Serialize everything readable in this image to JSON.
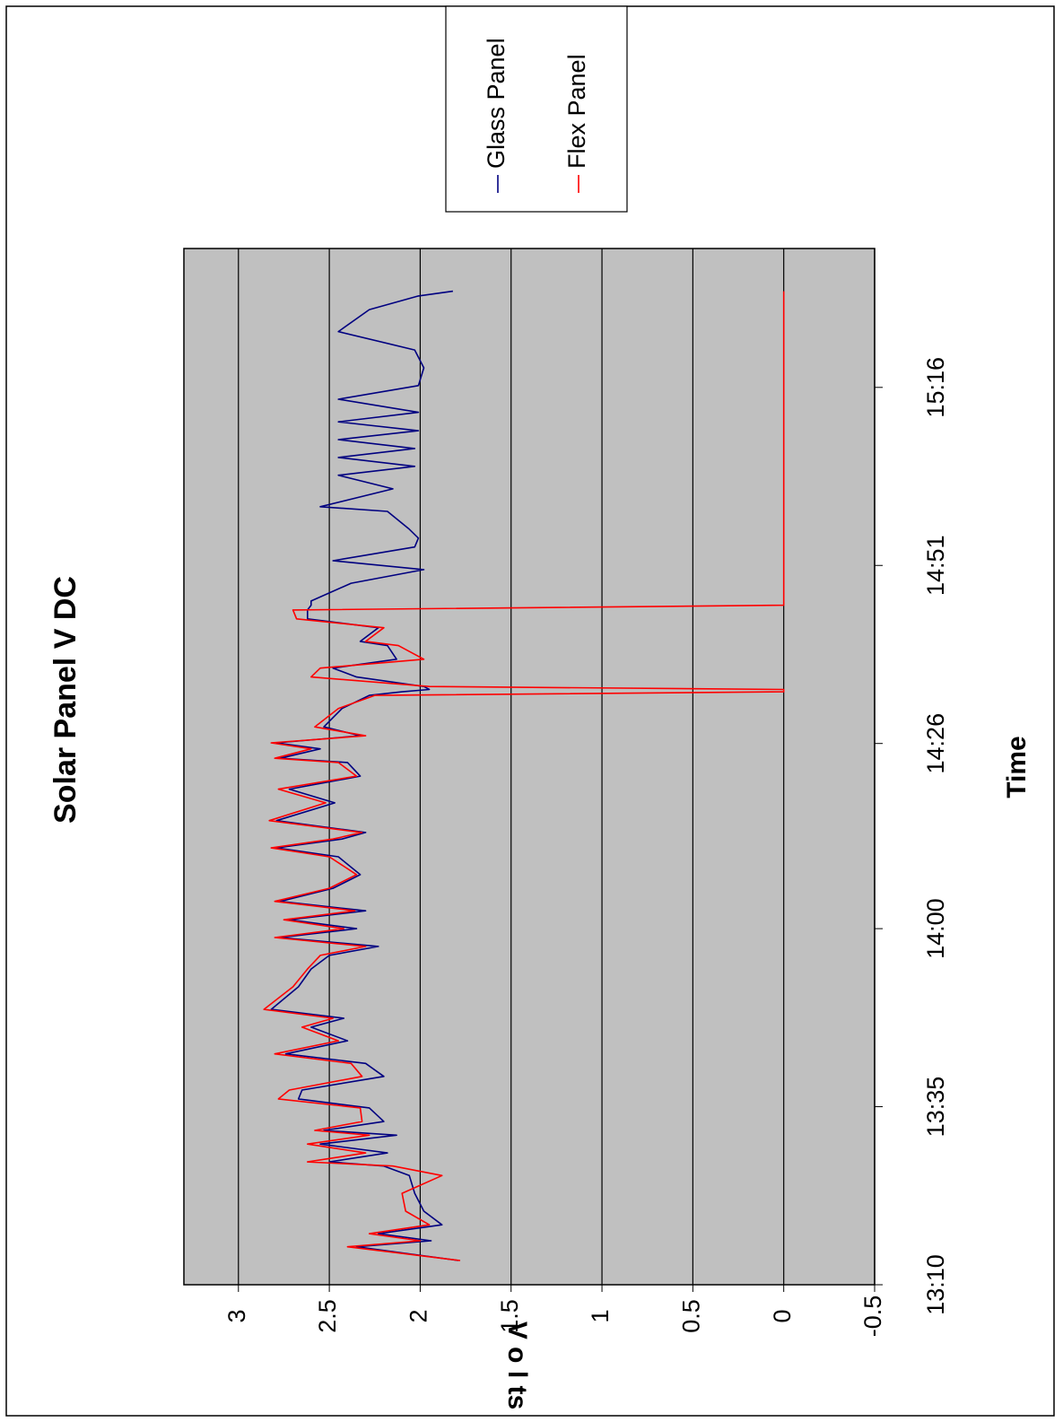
{
  "chart_data": {
    "type": "line",
    "title": "Solar Panel V DC",
    "x_label": "Time",
    "y_label": "V o l ts",
    "x": [
      "13:13:24",
      "13:15:20",
      "13:16:10",
      "13:17:10",
      "13:18:25",
      "13:20:20",
      "13:22:50",
      "13:25:20",
      "13:26:40",
      "13:27:15",
      "13:28:30",
      "13:29:45",
      "13:31:00",
      "13:31:40",
      "13:32:55",
      "13:34:50",
      "13:36:05",
      "13:37:20",
      "13:39:15",
      "13:41:05",
      "13:42:25",
      "13:44:15",
      "13:46:10",
      "13:47:25",
      "13:48:40",
      "13:51:50",
      "13:54:20",
      "13:56:15",
      "13:57:30",
      "13:58:45",
      "14:00:00",
      "14:01:15",
      "14:02:30",
      "14:03:50",
      "14:05:40",
      "14:07:35",
      "14:10:05",
      "14:11:20",
      "14:12:35",
      "14:13:30",
      "14:15:10",
      "14:17:40",
      "14:19:35",
      "14:21:25",
      "14:23:20",
      "14:23:55",
      "14:25:15",
      "14:26:05",
      "14:27:05",
      "14:28:20",
      "14:30:55",
      "14:32:45",
      "14:33:15",
      "14:33:35",
      "14:34:00",
      "14:35:20",
      "14:36:35",
      "14:37:50",
      "14:39:45",
      "14:40:20",
      "14:42:15",
      "14:43:30",
      "14:44:45",
      "14:45:25",
      "14:46:00",
      "14:48:30",
      "14:50:25",
      "14:51:40",
      "14:53:35",
      "14:54:50",
      "14:56:05",
      "14:58:35",
      "14:59:15",
      "15:01:45",
      "15:03:40",
      "15:04:55",
      "15:06:10",
      "15:07:25",
      "15:08:40",
      "15:09:55",
      "15:11:10",
      "15:12:30",
      "15:14:20",
      "15:16:15",
      "15:18:45",
      "15:21:15",
      "15:23:50",
      "15:26:55",
      "15:28:50",
      "15:29:30"
    ],
    "series": [
      {
        "name": "Glass Panel",
        "color": "#000080",
        "values": [
          1.79,
          2.35,
          1.94,
          2.23,
          1.88,
          1.98,
          2.03,
          2.06,
          2.2,
          2.5,
          2.18,
          2.55,
          2.13,
          2.53,
          2.2,
          2.28,
          2.67,
          2.65,
          2.2,
          2.3,
          2.74,
          2.4,
          2.6,
          2.42,
          2.82,
          2.67,
          2.6,
          2.5,
          2.23,
          2.77,
          2.35,
          2.72,
          2.3,
          2.77,
          2.48,
          2.33,
          2.45,
          2.79,
          2.43,
          2.3,
          2.79,
          2.47,
          2.72,
          2.33,
          2.4,
          2.77,
          2.55,
          2.79,
          2.33,
          2.53,
          2.43,
          2.28,
          2.1,
          1.95,
          1.98,
          2.35,
          2.48,
          2.13,
          2.18,
          2.33,
          2.23,
          2.62,
          2.62,
          2.6,
          2.6,
          2.38,
          1.98,
          2.48,
          2.03,
          2.01,
          2.06,
          2.18,
          2.55,
          2.15,
          2.45,
          2.03,
          2.45,
          2.03,
          2.45,
          2.01,
          2.45,
          2.01,
          2.45,
          2.01,
          1.98,
          2.03,
          2.45,
          2.28,
          2.01,
          1.82
        ]
      },
      {
        "name": "Flex Panel",
        "color": "#ff0000",
        "values": [
          1.78,
          2.4,
          2.0,
          2.28,
          1.95,
          2.08,
          2.1,
          1.88,
          2.15,
          2.62,
          2.3,
          2.62,
          2.28,
          2.58,
          2.32,
          2.33,
          2.78,
          2.72,
          2.32,
          2.38,
          2.8,
          2.45,
          2.65,
          2.48,
          2.86,
          2.7,
          2.62,
          2.55,
          2.3,
          2.8,
          2.42,
          2.75,
          2.36,
          2.8,
          2.5,
          2.35,
          2.5,
          2.82,
          2.48,
          2.32,
          2.83,
          2.52,
          2.78,
          2.35,
          2.45,
          2.8,
          2.6,
          2.82,
          2.3,
          2.58,
          2.45,
          2.25,
          0,
          0,
          1.95,
          2.6,
          2.55,
          1.98,
          2.12,
          2.3,
          2.2,
          2.68,
          2.7,
          0,
          0,
          0,
          0,
          0,
          0,
          0,
          0,
          0,
          0,
          0,
          0,
          0,
          0,
          0,
          0,
          0,
          0,
          0,
          0,
          0,
          0,
          0,
          0,
          0,
          0,
          0
        ]
      }
    ],
    "xlim": [
      "13:10:00",
      "15:35:30"
    ],
    "xticks": [
      "13:10",
      "13:35",
      "14:00",
      "14:26",
      "14:51",
      "15:16"
    ],
    "ylim": [
      -0.5,
      3.3
    ],
    "yticks": [
      -0.5,
      0,
      0.5,
      1,
      1.5,
      2,
      2.5,
      3
    ],
    "grid": true,
    "legend": "right"
  }
}
